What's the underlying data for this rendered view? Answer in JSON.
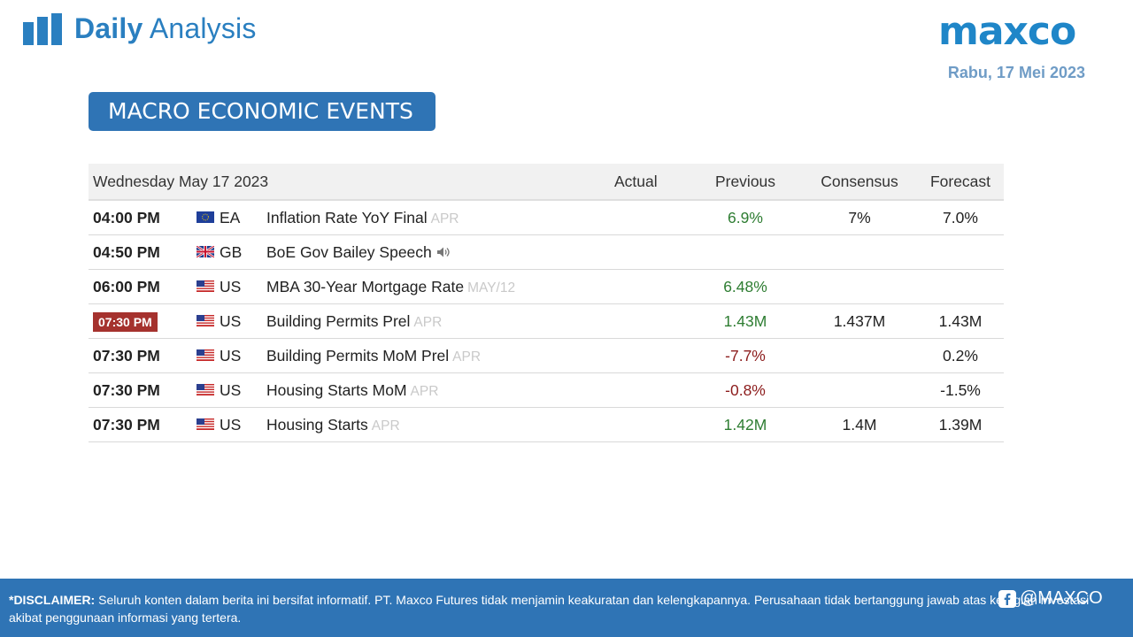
{
  "header": {
    "title_bold": "Daily",
    "title_rest": "Analysis",
    "logo": "maxco",
    "date": "Rabu,  17 Mei 2023",
    "accent_color": "#2f74b5"
  },
  "section": {
    "label": "MACRO ECONOMIC EVENTS"
  },
  "table": {
    "headers": {
      "date": "Wednesday May 17 2023",
      "actual": "Actual",
      "previous": "Previous",
      "consensus": "Consensus",
      "forecast": "Forecast"
    },
    "rows": [
      {
        "time": "04:00 PM",
        "flag": "eu-flag-icon",
        "country": "EA",
        "event": "Inflation Rate YoY Final",
        "period": "APR",
        "actual": "",
        "previous": "6.9%",
        "consensus": "7%",
        "forecast": "7.0%"
      },
      {
        "time": "04:50 PM",
        "flag": "uk-flag-icon",
        "country": "GB",
        "event": "BoE Gov Bailey Speech",
        "period": "",
        "actual": "",
        "previous": "",
        "consensus": "",
        "forecast": ""
      },
      {
        "time": "06:00 PM",
        "flag": "us-flag-icon",
        "country": "US",
        "event": "MBA 30-Year Mortgage Rate",
        "period": "MAY/12",
        "actual": "",
        "previous": "6.48%",
        "consensus": "",
        "forecast": ""
      },
      {
        "time": "07:30 PM",
        "flag": "us-flag-icon",
        "country": "US",
        "event": "Building Permits Prel",
        "period": "APR",
        "actual": "",
        "previous": "1.43M",
        "consensus": "1.437M",
        "forecast": "1.43M"
      },
      {
        "time": "07:30 PM",
        "flag": "us-flag-icon",
        "country": "US",
        "event": "Building Permits MoM Prel",
        "period": "APR",
        "actual": "",
        "previous": "-7.7%",
        "consensus": "",
        "forecast": "0.2%"
      },
      {
        "time": "07:30 PM",
        "flag": "us-flag-icon",
        "country": "US",
        "event": "Housing Starts MoM",
        "period": "APR",
        "actual": "",
        "previous": "-0.8%",
        "consensus": "",
        "forecast": "-1.5%"
      },
      {
        "time": "07:30 PM",
        "flag": "us-flag-icon",
        "country": "US",
        "event": "Housing Starts",
        "period": "APR",
        "actual": "",
        "previous": "1.42M",
        "consensus": "1.4M",
        "forecast": "1.39M"
      }
    ]
  },
  "footer": {
    "disclaimer_label": "*DISCLAIMER:",
    "disclaimer_text": " Seluruh konten dalam berita ini bersifat informatif. PT. Maxco Futures tidak menjamin keakuratan dan kelengkapannya. Perusahaan tidak bertanggung jawab atas kerugian investasi akibat penggunaan informasi yang tertera.",
    "social_handle": "@MAXCO"
  }
}
